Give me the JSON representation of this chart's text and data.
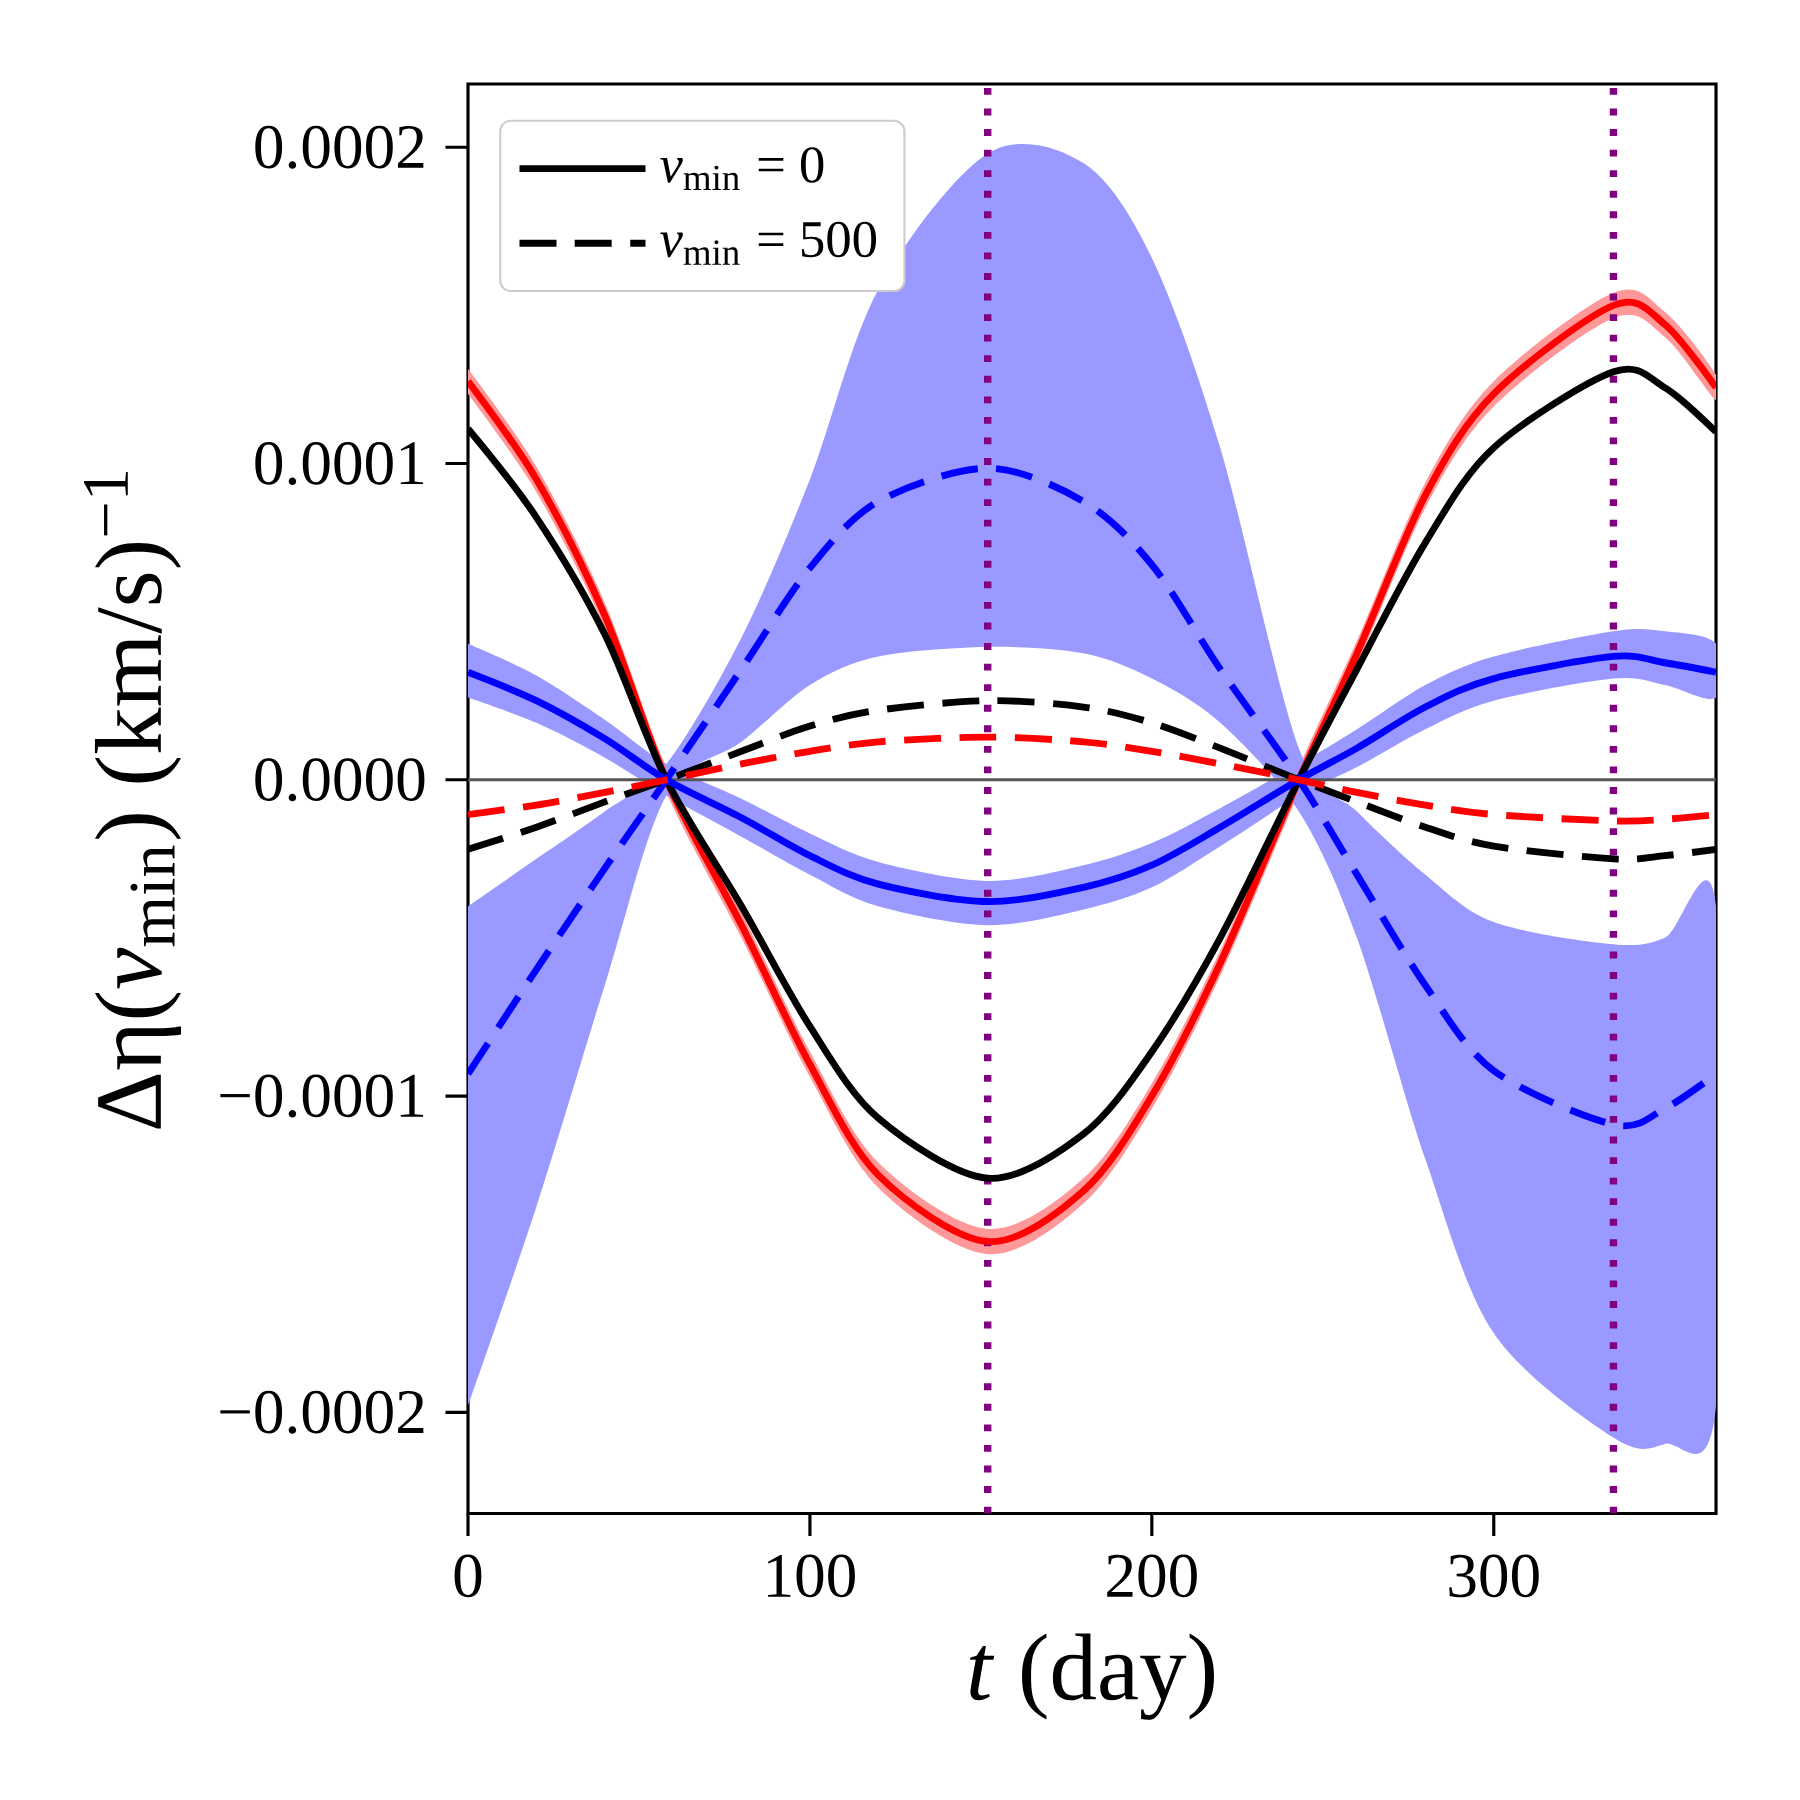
{
  "chart_data": {
    "type": "line",
    "xlabel": "*t* (day)",
    "ylabel": "Δη(*v*$_{min}$) (km/s)$^{−1}$",
    "x": [
      0,
      20,
      40,
      58,
      80,
      100,
      120,
      152,
      180,
      200,
      220,
      243,
      260,
      280,
      300,
      335,
      350,
      365
    ],
    "xlim": [
      0,
      365
    ],
    "xticks": [
      0,
      100,
      200,
      300
    ],
    "ylim": [
      -0.000232,
      0.00022
    ],
    "yticks": [
      {
        "value": -0.0002,
        "label": "−0.0002"
      },
      {
        "value": -0.0001,
        "label": "−0.0001"
      },
      {
        "value": 0,
        "label": "0.0000"
      },
      {
        "value": 0.0001,
        "label": "0.0001"
      },
      {
        "value": 0.0002,
        "label": "0.0002"
      }
    ],
    "legend": "top left",
    "series": [
      {
        "color": "#ff0000",
        "line_style": "solid",
        "values": [
          0.000126,
          9.5e-05,
          5.2e-05,
          0.0,
          -4.6e-05,
          -9e-05,
          -0.000125,
          -0.000146,
          -0.00013,
          -0.0001,
          -5.8e-05,
          0.0,
          4e-05,
          9e-05,
          0.000122,
          0.00015,
          0.000144,
          0.000124
        ],
        "lower": [
          0.000122,
          9.1e-05,
          4.8e-05,
          -4e-06,
          -5e-05,
          -9.4e-05,
          -0.000129,
          -0.00015,
          -0.000134,
          -0.000104,
          -6.2e-05,
          -4e-06,
          3.6e-05,
          8.6e-05,
          0.000118,
          0.000146,
          0.00014,
          0.00012
        ],
        "upper": [
          0.00013,
          9.9e-05,
          5.6e-05,
          4e-06,
          -4.2e-05,
          -8.6e-05,
          -0.000121,
          -0.000142,
          -0.000126,
          -9.6e-05,
          -5.4e-05,
          4e-06,
          4.4e-05,
          9.4e-05,
          0.000126,
          0.000154,
          0.000148,
          0.000128
        ]
      },
      {
        "name": "*v*$_{min}$ = 0",
        "color": "#000000",
        "line_style": "solid",
        "values": [
          0.000111,
          8.3e-05,
          4.6e-05,
          0.0,
          -4e-05,
          -7.8e-05,
          -0.000107,
          -0.000126,
          -0.000112,
          -8.6e-05,
          -5e-05,
          0.0,
          3.5e-05,
          7.5e-05,
          0.000105,
          0.000129,
          0.000124,
          0.00011
        ]
      },
      {
        "color": "#0000ff",
        "line_style": "solid",
        "values": [
          3.4e-05,
          2.5e-05,
          1.3e-05,
          0.0,
          -1.2e-05,
          -2.4e-05,
          -3.3e-05,
          -3.85e-05,
          -3.4e-05,
          -2.7e-05,
          -1.5e-05,
          0.0,
          1e-05,
          2.3e-05,
          3.2e-05,
          3.9e-05,
          3.7e-05,
          3.4e-05
        ],
        "lower": [
          2.6e-05,
          1.8e-05,
          7e-06,
          -5e-06,
          -1.8e-05,
          -3e-05,
          -4e-05,
          -4.6e-05,
          -4.1e-05,
          -3.4e-05,
          -2.1e-05,
          -5e-06,
          4e-06,
          1.6e-05,
          2.5e-05,
          3.2e-05,
          3e-05,
          2.6e-05
        ],
        "upper": [
          4.3e-05,
          3.3e-05,
          1.9e-05,
          5e-06,
          -6e-06,
          -1.7e-05,
          -2.6e-05,
          -3.2e-05,
          -2.7e-05,
          -2e-05,
          -9e-06,
          5e-06,
          1.6e-05,
          3e-05,
          3.9e-05,
          4.7e-05,
          4.7e-05,
          4.3e-05
        ]
      },
      {
        "color": "#0000ff",
        "line_style": "dashed",
        "values": [
          -9.3e-05,
          -6e-05,
          -2.8e-05,
          0.0,
          3.5e-05,
          6.7e-05,
          8.8e-05,
          9.85e-05,
          8.8e-05,
          6.8e-05,
          3.5e-05,
          0.0,
          -3e-05,
          -6.5e-05,
          -9.2e-05,
          -0.000109,
          -0.000104,
          -9.3e-05
        ],
        "lower": [
          -0.000198,
          -0.000135,
          -6.5e-05,
          -5e-06,
          1.2e-05,
          3e-05,
          3.9e-05,
          4.2e-05,
          4e-05,
          3.2e-05,
          1.8e-05,
          -1e-05,
          -5e-05,
          -0.00012,
          -0.000175,
          -0.000208,
          -0.00021,
          -0.000198
        ],
        "upper": [
          -4e-05,
          -2.5e-05,
          -1e-05,
          5e-06,
          4.5e-05,
          9.5e-05,
          0.000155,
          0.000198,
          0.000195,
          0.000165,
          0.000105,
          1e-05,
          -1e-05,
          -3e-05,
          -4.5e-05,
          -5.2e-05,
          -5e-05,
          -4e-05
        ]
      },
      {
        "name": "*v*$_{min}$ = 500",
        "color": "#000000",
        "line_style": "dashed",
        "values": [
          -2.2e-05,
          -1.5e-05,
          -7e-06,
          0.0,
          9e-06,
          1.7e-05,
          2.2e-05,
          2.5e-05,
          2.3e-05,
          1.8e-05,
          1e-05,
          0.0,
          -7e-06,
          -1.5e-05,
          -2.1e-05,
          -2.5e-05,
          -2.4e-05,
          -2.2e-05
        ]
      },
      {
        "color": "#ff0000",
        "line_style": "dashed",
        "values": [
          -1.1e-05,
          -8e-06,
          -4e-06,
          0.0,
          5e-06,
          9e-06,
          1.2e-05,
          1.35e-05,
          1.2e-05,
          9e-06,
          5e-06,
          0.0,
          -4e-06,
          -8e-06,
          -1.1e-05,
          -1.3e-05,
          -1.25e-05,
          -1.1e-05
        ]
      }
    ],
    "ref_lines": [
      {
        "axis": "y",
        "value": 0,
        "color": "#555555",
        "line_style": "solid"
      },
      {
        "axis": "x",
        "value": 152,
        "color": "#800080",
        "line_style": "dotted"
      },
      {
        "axis": "x",
        "value": 335,
        "color": "#800080",
        "line_style": "dotted"
      }
    ]
  }
}
